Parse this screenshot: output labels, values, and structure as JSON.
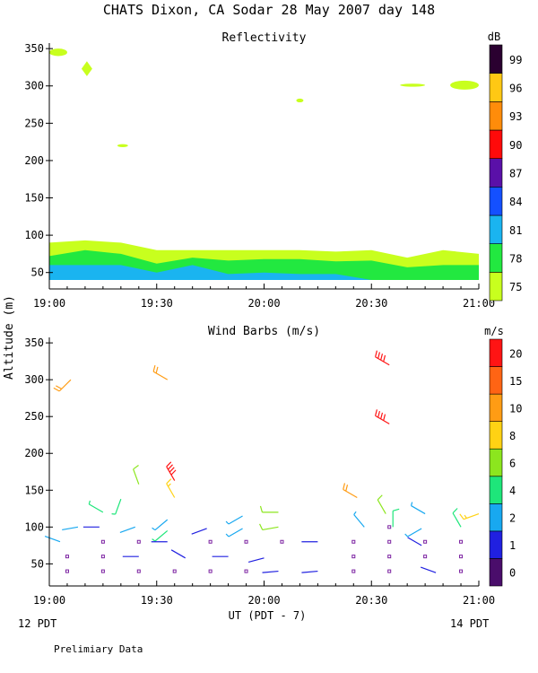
{
  "page": {
    "title": "CHATS Dixon, CA  Sodar  28 May 2007  day 148",
    "y_axis_label": "Altitude (m)",
    "x_axis_label": "UT  (PDT - 7)",
    "left_time_note": "12 PDT",
    "right_time_note": "14 PDT",
    "footer_note": "Prelimiary Data"
  },
  "chart_data": [
    {
      "type": "area",
      "title": "Reflectivity",
      "xlabel": "UT  (PDT - 7)",
      "ylabel": "Altitude (m)",
      "xlim": [
        0,
        120
      ],
      "ylim": [
        28,
        355
      ],
      "x_ticks": [
        0,
        30,
        60,
        90,
        120
      ],
      "x_tick_labels": [
        "19:00",
        "19:30",
        "20:00",
        "20:30",
        "21:00"
      ],
      "y_ticks": [
        50,
        100,
        150,
        200,
        250,
        300,
        350
      ],
      "y_tick_labels": [
        "50",
        "100",
        "150",
        "200",
        "250",
        "300",
        "350"
      ],
      "colorbar": {
        "unit": "dB",
        "tick_labels": [
          "75",
          "78",
          "81",
          "84",
          "87",
          "90",
          "93",
          "96",
          "99"
        ],
        "colors": [
          "#c8ff1e",
          "#22e840",
          "#1ab4f0",
          "#1450ff",
          "#5a10a8",
          "#ff0a0a",
          "#ff8c0a",
          "#ffc814",
          "#2a0030"
        ]
      },
      "x": [
        0,
        10,
        20,
        30,
        40,
        50,
        60,
        70,
        80,
        90,
        100,
        110,
        120
      ],
      "series": [
        {
          "color": "#c8ff1e",
          "values": [
            90,
            93,
            90,
            80,
            80,
            80,
            80,
            80,
            78,
            80,
            70,
            80,
            75
          ]
        },
        {
          "color": "#22e840",
          "values": [
            72,
            80,
            75,
            62,
            70,
            66,
            68,
            68,
            65,
            66,
            57,
            60,
            60
          ]
        },
        {
          "color": "#1ab4f0",
          "values": [
            60,
            60,
            60,
            50,
            60,
            48,
            50,
            48,
            48,
            40,
            40,
            40,
            40
          ]
        }
      ],
      "baseline": 40,
      "patches": [
        {
          "color": "#c8ff1e",
          "x": [
            0,
            5
          ],
          "y": [
            340,
            350
          ]
        },
        {
          "color": "#c8ff1e",
          "x": [
            9,
            12
          ],
          "y": [
            313,
            333
          ],
          "shape": "diamond"
        },
        {
          "color": "#c8ff1e",
          "x": [
            19,
            22
          ],
          "y": [
            218,
            222
          ]
        },
        {
          "color": "#c8ff1e",
          "x": [
            69,
            71
          ],
          "y": [
            278,
            283
          ]
        },
        {
          "color": "#c8ff1e",
          "x": [
            98,
            105
          ],
          "y": [
            299,
            303
          ]
        },
        {
          "color": "#c8ff1e",
          "x": [
            112,
            120
          ],
          "y": [
            295,
            307
          ]
        }
      ]
    },
    {
      "type": "scatter",
      "title": "Wind Barbs (m/s)",
      "xlabel": "UT  (PDT - 7)",
      "ylabel": "Altitude (m)",
      "xlim": [
        0,
        120
      ],
      "ylim": [
        20,
        355
      ],
      "x_ticks": [
        0,
        30,
        60,
        90,
        120
      ],
      "x_tick_labels": [
        "19:00",
        "19:30",
        "20:00",
        "20:30",
        "21:00"
      ],
      "y_ticks": [
        50,
        100,
        150,
        200,
        250,
        300,
        350
      ],
      "y_tick_labels": [
        "50",
        "100",
        "150",
        "200",
        "250",
        "300",
        "350"
      ],
      "colorbar": {
        "unit": "m/s",
        "tick_labels": [
          "0",
          "1",
          "2",
          "4",
          "6",
          "8",
          "10",
          "15",
          "20"
        ],
        "colors": [
          "#4a0d6b",
          "#2020e0",
          "#18a8f0",
          "#1ee67a",
          "#8ce61e",
          "#ffd214",
          "#ff9c14",
          "#ff6414",
          "#ff1414"
        ]
      },
      "points": [
        {
          "x": 6,
          "y": 300,
          "speed": 11,
          "dir": 225
        },
        {
          "x": 33,
          "y": 300,
          "speed": 11,
          "dir": 300
        },
        {
          "x": 95,
          "y": 320,
          "speed": 20,
          "dir": 300
        },
        {
          "x": 95,
          "y": 240,
          "speed": 20,
          "dir": 300
        },
        {
          "x": 35,
          "y": 163,
          "speed": 20,
          "dir": 330
        },
        {
          "x": 25,
          "y": 158,
          "speed": 6,
          "dir": 340
        },
        {
          "x": 35,
          "y": 140,
          "speed": 8,
          "dir": 330
        },
        {
          "x": 20,
          "y": 138,
          "speed": 4,
          "dir": 200
        },
        {
          "x": 15,
          "y": 120,
          "speed": 4,
          "dir": 300
        },
        {
          "x": 8,
          "y": 100,
          "speed": 2,
          "dir": 260
        },
        {
          "x": 14,
          "y": 100,
          "speed": 1,
          "dir": 270
        },
        {
          "x": 24,
          "y": 100,
          "speed": 2,
          "dir": 250
        },
        {
          "x": 33,
          "y": 110,
          "speed": 3,
          "dir": 230
        },
        {
          "x": 33,
          "y": 95,
          "speed": 4,
          "dir": 230
        },
        {
          "x": 44,
          "y": 98,
          "speed": 1,
          "dir": 250
        },
        {
          "x": 54,
          "y": 115,
          "speed": 3,
          "dir": 240
        },
        {
          "x": 54,
          "y": 98,
          "speed": 3,
          "dir": 240
        },
        {
          "x": 64,
          "y": 120,
          "speed": 7,
          "dir": 270
        },
        {
          "x": 64,
          "y": 100,
          "speed": 7,
          "dir": 260
        },
        {
          "x": 86,
          "y": 140,
          "speed": 10,
          "dir": 300
        },
        {
          "x": 88,
          "y": 100,
          "speed": 3,
          "dir": 320
        },
        {
          "x": 94,
          "y": 118,
          "speed": 7,
          "dir": 330
        },
        {
          "x": 96,
          "y": 100,
          "speed": 5,
          "dir": 0
        },
        {
          "x": 105,
          "y": 118,
          "speed": 3,
          "dir": 300
        },
        {
          "x": 104,
          "y": 98,
          "speed": 3,
          "dir": 240
        },
        {
          "x": 115,
          "y": 100,
          "speed": 5,
          "dir": 330
        },
        {
          "x": 120,
          "y": 118,
          "speed": 8,
          "dir": 250
        },
        {
          "x": 3,
          "y": 80,
          "speed": 2,
          "dir": 290
        },
        {
          "x": 33,
          "y": 80,
          "speed": 1,
          "dir": 270
        },
        {
          "x": 104,
          "y": 75,
          "speed": 1,
          "dir": 300
        },
        {
          "x": 25,
          "y": 60,
          "speed": 1,
          "dir": 270
        },
        {
          "x": 38,
          "y": 58,
          "speed": 1,
          "dir": 300
        },
        {
          "x": 50,
          "y": 60,
          "speed": 1,
          "dir": 270
        },
        {
          "x": 60,
          "y": 58,
          "speed": 1,
          "dir": 255
        },
        {
          "x": 75,
          "y": 80,
          "speed": 1,
          "dir": 270
        },
        {
          "x": 64,
          "y": 40,
          "speed": 1,
          "dir": 265
        },
        {
          "x": 75,
          "y": 40,
          "speed": 1,
          "dir": 265
        },
        {
          "x": 108,
          "y": 38,
          "speed": 1,
          "dir": 290
        }
      ],
      "calm_points": [
        {
          "x": 5,
          "y": 40
        },
        {
          "x": 15,
          "y": 40
        },
        {
          "x": 25,
          "y": 40
        },
        {
          "x": 35,
          "y": 40
        },
        {
          "x": 45,
          "y": 40
        },
        {
          "x": 55,
          "y": 40
        },
        {
          "x": 85,
          "y": 40
        },
        {
          "x": 95,
          "y": 40
        },
        {
          "x": 115,
          "y": 40
        },
        {
          "x": 5,
          "y": 60
        },
        {
          "x": 15,
          "y": 60
        },
        {
          "x": 85,
          "y": 60
        },
        {
          "x": 95,
          "y": 60
        },
        {
          "x": 105,
          "y": 60
        },
        {
          "x": 115,
          "y": 60
        },
        {
          "x": 15,
          "y": 80
        },
        {
          "x": 25,
          "y": 80
        },
        {
          "x": 45,
          "y": 80
        },
        {
          "x": 55,
          "y": 80
        },
        {
          "x": 65,
          "y": 80
        },
        {
          "x": 85,
          "y": 80
        },
        {
          "x": 95,
          "y": 80
        },
        {
          "x": 115,
          "y": 80
        },
        {
          "x": 95,
          "y": 100
        },
        {
          "x": 105,
          "y": 80
        }
      ]
    }
  ]
}
